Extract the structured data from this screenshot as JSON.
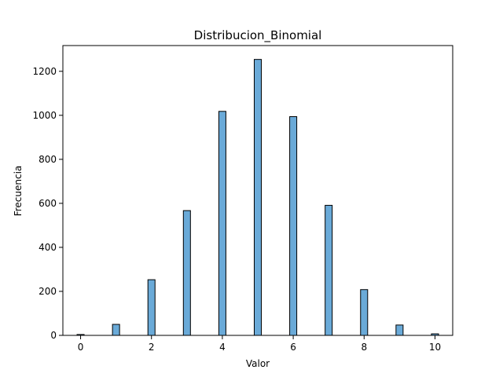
{
  "chart_data": {
    "type": "bar",
    "title": "Distribucion_Binomial",
    "xlabel": "Valor",
    "ylabel": "Frecuencia",
    "x": [
      0,
      1,
      2,
      3,
      4,
      5,
      6,
      7,
      8,
      9,
      10
    ],
    "values": [
      4,
      50,
      253,
      567,
      1018,
      1254,
      994,
      591,
      208,
      47,
      7
    ],
    "xlim": [
      -0.5,
      10.5
    ],
    "ylim": [
      0,
      1317
    ],
    "xticks": [
      0,
      2,
      4,
      6,
      8,
      10
    ],
    "yticks": [
      0,
      200,
      400,
      600,
      800,
      1000,
      1200
    ],
    "bar_color": "#6aaad8",
    "edge_color": "#000000",
    "grid": false,
    "legend": "none"
  }
}
